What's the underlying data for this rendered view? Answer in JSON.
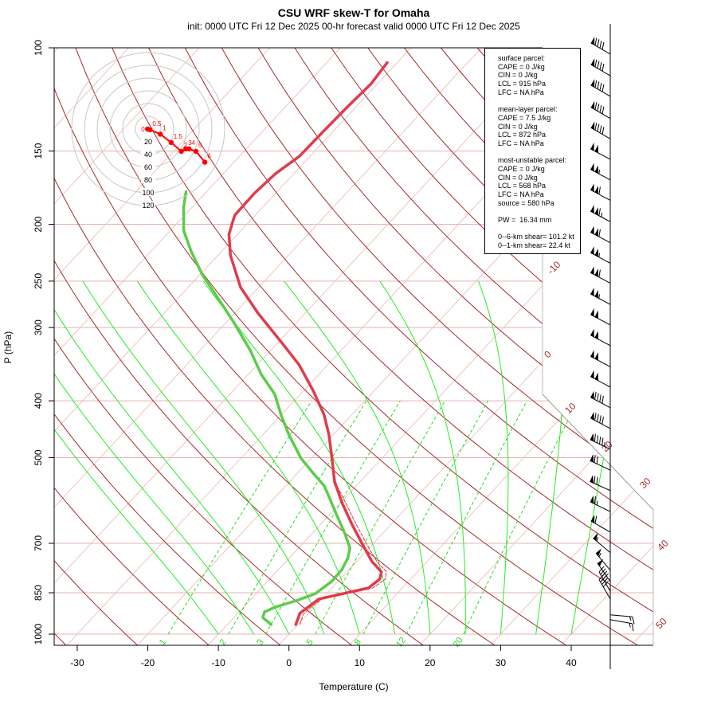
{
  "chart_data": {
    "type": "line",
    "title": "CSU WRF skew-T for Omaha",
    "subtitle": "init: 0000 UTC Fri 12 Dec 2025    00-hr forecast valid 0000 UTC Fri 12 Dec 2025",
    "xlabel": "Temperature (C)",
    "ylabel": "P (hPa)",
    "xlim": [
      -33,
      45
    ],
    "ylim": [
      1000,
      100
    ],
    "x_ticks": [
      -30,
      -20,
      -10,
      0,
      10,
      20,
      30,
      40
    ],
    "y_ticks": [
      100,
      150,
      200,
      250,
      300,
      400,
      500,
      700,
      850,
      1000
    ],
    "isotherm_labels": [
      "-10",
      "0",
      "10",
      "20",
      "30",
      "40",
      "50"
    ],
    "mixing_ratio_labels": [
      "1",
      "2",
      "3",
      "5",
      "8",
      "12",
      "20"
    ],
    "series": [
      {
        "name": "temperature",
        "color": "#e03c4c",
        "p": [
          963,
          921,
          871,
          853,
          834,
          805,
          783,
          752,
          695,
          649,
          598,
          550,
          501,
          456,
          422,
          384,
          347,
          318,
          283,
          256,
          226,
          208,
          193,
          177,
          164,
          153,
          139,
          126,
          115,
          106
        ],
        "T": [
          -0.3,
          -1.2,
          -0.4,
          2.3,
          5.2,
          5.6,
          4.9,
          2.2,
          -2.0,
          -5.6,
          -9.7,
          -13.6,
          -17.1,
          -20.7,
          -24.0,
          -28.7,
          -34.1,
          -39.5,
          -46.8,
          -52.6,
          -58.2,
          -61.2,
          -62.9,
          -63.0,
          -62.6,
          -61.5,
          -61.4,
          -61.2,
          -60.9,
          -61.4
        ]
      },
      {
        "name": "dewpoint",
        "color": "#5ccc4c",
        "p": [
          963,
          937,
          916,
          899,
          877,
          853,
          813,
          776,
          741,
          713,
          674,
          623,
          559,
          533,
          501,
          456,
          422,
          390,
          361,
          328,
          294,
          268,
          244,
          222,
          205,
          187,
          176
        ],
        "T": [
          -3.8,
          -5.9,
          -6.4,
          -5.5,
          -3.4,
          -1.6,
          -0.9,
          -1.0,
          -1.7,
          -2.7,
          -5.3,
          -9.2,
          -14.5,
          -17.6,
          -21.5,
          -26.4,
          -30.1,
          -33.6,
          -38.1,
          -42.9,
          -48.9,
          -54.2,
          -59.6,
          -64.4,
          -68.1,
          -71.2,
          -72.9
        ]
      },
      {
        "name": "parcel",
        "color": "#e8303c",
        "p": [
          963,
          925,
          900,
          871,
          853,
          834,
          805,
          783,
          752,
          695,
          649,
          598,
          560,
          540
        ],
        "T": [
          0.3,
          -0.6,
          -0.4,
          0.0,
          2.8,
          5.8,
          6.4,
          5.6,
          2.9,
          -1.4,
          -5.0,
          -9.2,
          -12.6,
          -14.3
        ]
      }
    ],
    "winds": {
      "p": [
        102.5,
        111.6,
        121,
        132,
        143,
        155,
        168,
        182,
        198,
        215,
        233,
        252,
        274,
        297,
        322,
        350,
        379,
        411,
        446,
        484,
        525,
        569,
        618,
        670,
        726,
        778,
        813,
        845,
        871,
        927,
        945
      ],
      "dir": [
        300,
        300,
        300,
        300,
        300,
        298,
        298,
        298,
        298,
        298,
        298,
        298,
        298,
        298,
        298,
        298,
        298,
        298,
        298,
        296,
        295,
        294,
        296,
        300,
        310,
        320,
        325,
        330,
        330,
        95,
        100
      ],
      "spd": [
        90,
        90,
        90,
        90,
        90,
        100,
        105,
        110,
        115,
        110,
        105,
        110,
        105,
        100,
        100,
        100,
        100,
        90,
        90,
        95,
        70,
        70,
        65,
        60,
        55,
        55,
        50,
        45,
        40,
        15,
        15
      ]
    },
    "hodograph": {
      "ring_labels": [
        "20",
        "40",
        "60",
        "80",
        "100",
        "120"
      ],
      "rings_kt": [
        20,
        40,
        60,
        80,
        100,
        120
      ],
      "heights_km": [
        "0",
        "0.5",
        "1",
        "1.5",
        "2",
        "3",
        "4",
        "5",
        "6"
      ],
      "u": [
        -1,
        3,
        19,
        36,
        52,
        59,
        64,
        75,
        89
      ],
      "v": [
        0,
        -1,
        -8,
        -21,
        -35,
        -31,
        -31,
        -35,
        -52
      ]
    }
  },
  "info_box": {
    "lines": [
      "surface parcel:",
      "CAPE = 0 J/kg",
      "CIN = 0 J/kg",
      "LCL = 915 hPa",
      "LFC = NA hPa",
      "",
      "mean-layer parcel:",
      "CAPE = 7.5 J/kg",
      "CIN = 0 J/kg",
      "LCL = 872 hPa",
      "LFC = NA hPa",
      "",
      "most-unstable parcel:",
      "CAPE = 0 J/kg",
      "CIN = 0 J/kg",
      "LCL = 568 hPa",
      "LFC = NA hPa",
      "source = 580 hPa",
      "",
      "PW =  16.34 mm",
      "",
      "0--6-km shear= 101.2 kt",
      "0--1-km shear= 22.4 kt"
    ]
  }
}
